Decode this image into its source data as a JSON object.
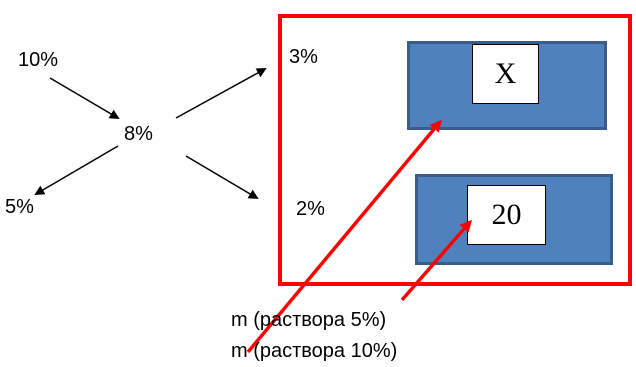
{
  "percentages": {
    "top_left": "10%",
    "center": "8%",
    "bottom_left": "5%",
    "top_right": "3%",
    "bottom_right": "2%"
  },
  "boxes": {
    "top_value": "X",
    "bottom_value": "20"
  },
  "captions": {
    "mass_5": "m (раствора 5%)",
    "mass_10": "m (раствора 10%)"
  },
  "colors": {
    "frame": "#ff0000",
    "bar_fill": "#4f81bd",
    "bar_border": "#385d8a",
    "arrow_black": "#000000",
    "arrow_red": "#ff0000"
  }
}
